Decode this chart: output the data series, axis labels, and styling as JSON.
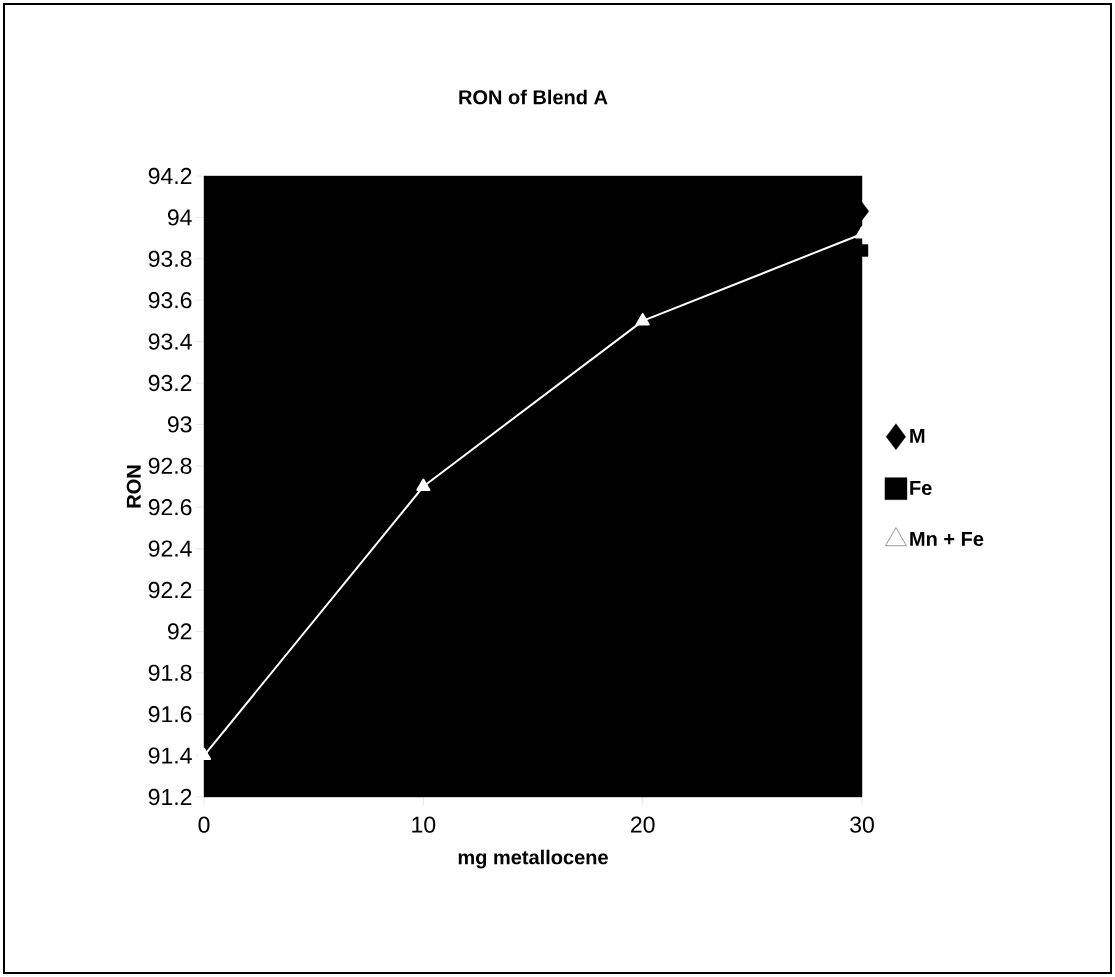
{
  "chart_data": {
    "type": "line",
    "title": "RON of Blend A",
    "xlabel": "mg metallocene",
    "ylabel": "RON",
    "series": [
      {
        "name": "M",
        "type": "scatter",
        "color": "#000000",
        "marker": "diamond",
        "x": [
          30
        ],
        "values": [
          94.03
        ]
      },
      {
        "name": "Fe",
        "type": "scatter",
        "color": "#000000",
        "marker": "square",
        "x": [
          30
        ],
        "values": [
          93.84
        ]
      },
      {
        "name": "Mn + Fe",
        "color": "#ffffff",
        "marker": "triangle",
        "line_style": "solid",
        "x": [
          0,
          10,
          20,
          30
        ],
        "values": [
          91.4,
          92.7,
          93.5,
          93.92
        ]
      }
    ],
    "xlim": [
      0,
      30
    ],
    "xticks": [
      0,
      10,
      20,
      30
    ],
    "ylim": [
      91.2,
      94.2
    ],
    "yticks": [
      91.2,
      91.4,
      91.6,
      91.8,
      92,
      92.2,
      92.4,
      92.6,
      92.8,
      93,
      93.2,
      93.4,
      93.6,
      93.8,
      94,
      94.2
    ],
    "grid": false,
    "legend": "right"
  }
}
